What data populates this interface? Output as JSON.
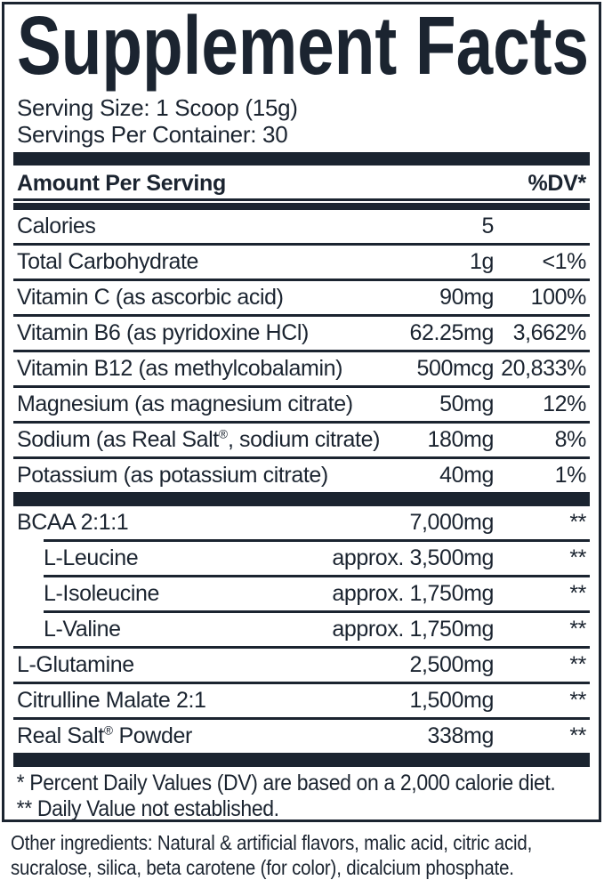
{
  "label": {
    "title": "Supplement Facts",
    "serving_size": "Serving Size: 1 Scoop (15g)",
    "servings_per_container": "Servings Per Container: 30",
    "header": {
      "amount_per_serving": "Amount Per Serving",
      "dv": "%DV*"
    },
    "nutrient_rows": [
      {
        "name": "Calories",
        "amount": "5",
        "dv": "",
        "divider": "full"
      },
      {
        "name": "Total Carbohydrate",
        "amount": "1g",
        "dv": "<1%",
        "divider": "full"
      },
      {
        "name": "Vitamin C (as ascorbic acid)",
        "amount": "90mg",
        "dv": "100%",
        "divider": "full"
      },
      {
        "name": "Vitamin B6 (as pyridoxine HCl)",
        "amount": "62.25mg",
        "dv": "3,662%",
        "divider": "full"
      },
      {
        "name": "Vitamin B12 (as methylcobalamin)",
        "amount": "500mcg",
        "dv": "20,833%",
        "divider": "full"
      },
      {
        "name": "Magnesium (as magnesium citrate)",
        "amount": "50mg",
        "dv": "12%",
        "divider": "full"
      },
      {
        "name": "Sodium (as Real Salt®, sodium citrate)",
        "amount": "180mg",
        "dv": "8%",
        "divider": "full"
      },
      {
        "name": "Potassium (as potassium citrate)",
        "amount": "40mg",
        "dv": "1%",
        "divider": "none"
      }
    ],
    "blend_rows": [
      {
        "name": "BCAA 2:1:1",
        "amount": "7,000mg",
        "dv": "**",
        "divider": "indent"
      },
      {
        "name": "L-Leucine",
        "amount": "approx. 3,500mg",
        "dv": "**",
        "indent": true,
        "divider": "indent"
      },
      {
        "name": "L-Isoleucine",
        "amount": "approx. 1,750mg",
        "dv": "**",
        "indent": true,
        "divider": "indent"
      },
      {
        "name": "L-Valine",
        "amount": "approx. 1,750mg",
        "dv": "**",
        "indent": true,
        "divider": "full"
      },
      {
        "name": "L-Glutamine",
        "amount": "2,500mg",
        "dv": "**",
        "divider": "full"
      },
      {
        "name": "Citrulline Malate 2:1",
        "amount": "1,500mg",
        "dv": "**",
        "divider": "full"
      },
      {
        "name": "Real Salt® Powder",
        "amount": "338mg",
        "dv": "**",
        "divider": "none"
      }
    ],
    "footnote_lines": [
      "* Percent Daily Values (DV) are based on a 2,000 calorie diet.",
      "** Daily Value not established."
    ],
    "other_ingredients_lines": [
      "Other ingredients: Natural & artificial flavors, malic acid, citric acid,",
      "sucralose, silica, beta carotene (for color), dicalcium phosphate."
    ],
    "colors": {
      "ink": "#1b2430",
      "background": "#ffffff"
    }
  }
}
